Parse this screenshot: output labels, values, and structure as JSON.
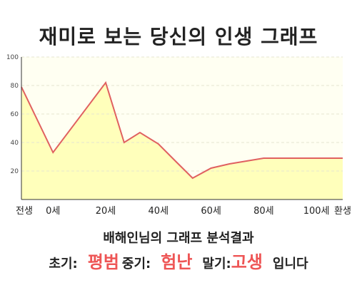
{
  "title": "재미로 보는 당신의 인생 그래프",
  "chart_data": {
    "type": "area",
    "x_tick_labels": [
      "전생",
      "0세",
      "20세",
      "40세",
      "60세",
      "80세",
      "100세",
      "환생"
    ],
    "y_ticks": [
      20,
      40,
      60,
      80,
      100
    ],
    "ylim": [
      0,
      100
    ],
    "grid": "horizontal dashed",
    "x": [
      -12,
      0,
      20,
      27,
      33,
      40,
      47,
      53,
      60,
      67,
      80,
      87,
      100,
      110
    ],
    "values": [
      79,
      33,
      82,
      40,
      47,
      39,
      26,
      15,
      22,
      25,
      29,
      29,
      29,
      29
    ],
    "line_color": "#e06060",
    "fill_color": "#ffffbb"
  },
  "summary": {
    "title": "배해인님의 그래프 분석결과",
    "early_label": "초기:",
    "early_value": "평범",
    "middle_label": "중기:",
    "middle_value": "험난",
    "late_label": "말기:",
    "late_value": "고생",
    "ending": "입니다"
  }
}
